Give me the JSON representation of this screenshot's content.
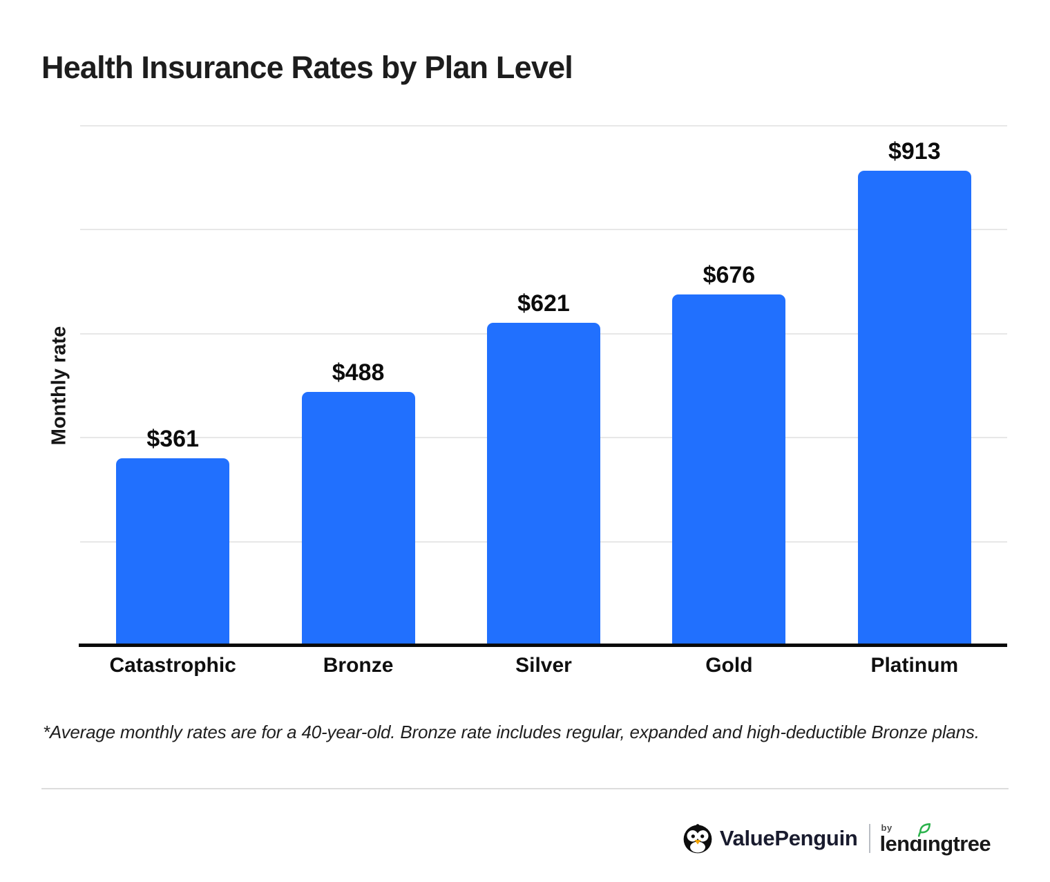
{
  "title": "Health Insurance Rates by Plan Level",
  "chart_data": {
    "type": "bar",
    "title": "Health Insurance Rates by Plan Level",
    "categories": [
      "Catastrophic",
      "Bronze",
      "Silver",
      "Gold",
      "Platinum"
    ],
    "values": [
      361,
      488,
      621,
      676,
      913
    ],
    "value_labels": [
      "$361",
      "$488",
      "$621",
      "$676",
      "$913"
    ],
    "xlabel": "",
    "ylabel": "Monthly rate",
    "ylim": [
      0,
      1000
    ],
    "gridline_values": [
      200,
      400,
      600,
      800,
      1000
    ],
    "grid": "horizontal-only, no y tick labels",
    "legend_position": "none",
    "bar_color": "#2170FE",
    "axis_color": "#0a0a0a"
  },
  "footnote": "*Average monthly rates are for a 40-year-old. Bronze rate includes regular, expanded and high-deductible Bronze plans.",
  "footer": {
    "value_penguin_label": "ValuePenguin",
    "by_label": "by",
    "lendingtree_label": "lendingtree",
    "icons": {
      "penguin": "penguin-logo-icon",
      "leaf": "leaf-icon"
    },
    "colors": {
      "leaf_green": "#2BB24C",
      "beak_orange": "#F7A600",
      "penguin_black": "#0d0d0d",
      "wordmark_dark": "#191b2e"
    }
  }
}
